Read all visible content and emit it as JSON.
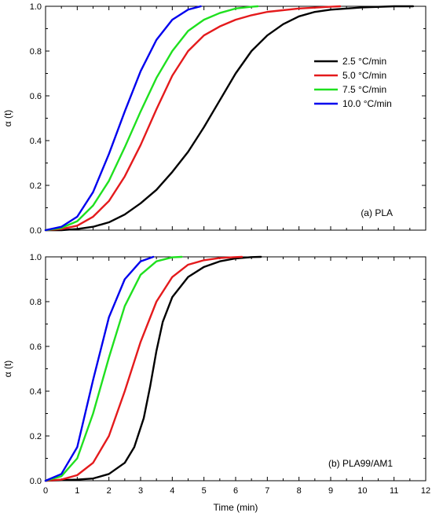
{
  "colors": {
    "2.5": "#000000",
    "5.0": "#e41a1c",
    "7.5": "#1fe01f",
    "10.0": "#0000ee"
  },
  "chart_data": [
    {
      "type": "line",
      "panel_label": "(a) PLA",
      "xlabel": "",
      "ylabel": "α (t)",
      "xlim": [
        0,
        12
      ],
      "ylim": [
        0,
        1.0
      ],
      "x_ticks": [],
      "y_ticks": [
        "0.0",
        "0.2",
        "0.4",
        "0.6",
        "0.8",
        "1.0"
      ],
      "legend": {
        "placement": "top-right",
        "shown": true
      },
      "series": [
        {
          "name": "2.5  °C/min",
          "color_key": "2.5",
          "x": [
            0,
            0.5,
            1,
            1.5,
            2,
            2.5,
            3,
            3.5,
            4,
            4.5,
            5,
            5.5,
            6,
            6.5,
            7,
            7.5,
            8,
            8.5,
            9,
            10,
            11,
            11.6
          ],
          "y": [
            0,
            0.0,
            0.005,
            0.015,
            0.035,
            0.07,
            0.12,
            0.18,
            0.26,
            0.35,
            0.46,
            0.58,
            0.7,
            0.8,
            0.87,
            0.92,
            0.955,
            0.975,
            0.985,
            0.995,
            1.0,
            1.0
          ]
        },
        {
          "name": "5.0  °C/min",
          "color_key": "5.0",
          "x": [
            0,
            0.5,
            1,
            1.5,
            2,
            2.5,
            3,
            3.5,
            4,
            4.5,
            5,
            5.5,
            6,
            6.5,
            7,
            8,
            9,
            9.3
          ],
          "y": [
            0,
            0.005,
            0.02,
            0.06,
            0.13,
            0.24,
            0.38,
            0.54,
            0.69,
            0.8,
            0.87,
            0.91,
            0.94,
            0.96,
            0.975,
            0.99,
            0.998,
            1.0
          ]
        },
        {
          "name": "7.5  °C/min",
          "color_key": "7.5",
          "x": [
            0,
            0.5,
            1,
            1.5,
            2,
            2.5,
            3,
            3.5,
            4,
            4.5,
            5,
            5.5,
            6,
            6.5,
            6.7
          ],
          "y": [
            0,
            0.01,
            0.04,
            0.11,
            0.22,
            0.37,
            0.53,
            0.68,
            0.8,
            0.89,
            0.94,
            0.97,
            0.99,
            0.998,
            1.0
          ]
        },
        {
          "name": "10.0  °C/min",
          "color_key": "10.0",
          "x": [
            0,
            0.5,
            1,
            1.5,
            2,
            2.5,
            3,
            3.5,
            4,
            4.5,
            4.9
          ],
          "y": [
            0,
            0.015,
            0.06,
            0.17,
            0.34,
            0.53,
            0.71,
            0.85,
            0.94,
            0.985,
            1.0
          ]
        }
      ]
    },
    {
      "type": "line",
      "panel_label": "(b) PLA99/AM1",
      "xlabel": "Time (min)",
      "ylabel": "α (t)",
      "xlim": [
        0,
        12
      ],
      "ylim": [
        0,
        1.0
      ],
      "x_ticks": [
        "0",
        "1",
        "2",
        "3",
        "4",
        "5",
        "6",
        "7",
        "8",
        "9",
        "10",
        "11",
        "12"
      ],
      "y_ticks": [
        "0.0",
        "0.2",
        "0.4",
        "0.6",
        "0.8",
        "1.0"
      ],
      "legend": {
        "shown": false
      },
      "series": [
        {
          "name": "2.5  °C/min",
          "color_key": "2.5",
          "x": [
            0,
            1,
            1.5,
            2,
            2.5,
            2.8,
            3.1,
            3.3,
            3.5,
            3.7,
            4,
            4.5,
            5,
            5.5,
            6,
            6.5,
            6.8
          ],
          "y": [
            0,
            0.005,
            0.01,
            0.03,
            0.08,
            0.15,
            0.28,
            0.42,
            0.58,
            0.71,
            0.82,
            0.91,
            0.955,
            0.98,
            0.993,
            0.999,
            1.0
          ]
        },
        {
          "name": "5.0  °C/min",
          "color_key": "5.0",
          "x": [
            0,
            0.5,
            1,
            1.5,
            2,
            2.5,
            3,
            3.5,
            4,
            4.5,
            5,
            5.5,
            6,
            6.2
          ],
          "y": [
            0,
            0.005,
            0.025,
            0.08,
            0.2,
            0.4,
            0.62,
            0.8,
            0.91,
            0.965,
            0.985,
            0.995,
            0.999,
            1.0
          ]
        },
        {
          "name": "7.5  °C/min",
          "color_key": "7.5",
          "x": [
            0,
            0.5,
            1,
            1.5,
            2,
            2.5,
            3,
            3.5,
            4,
            4.3
          ],
          "y": [
            0,
            0.02,
            0.1,
            0.3,
            0.55,
            0.78,
            0.92,
            0.98,
            0.998,
            1.0
          ]
        },
        {
          "name": "10.0  °C/min",
          "color_key": "10.0",
          "x": [
            0,
            0.5,
            1,
            1.5,
            2,
            2.5,
            3,
            3.4
          ],
          "y": [
            0,
            0.03,
            0.15,
            0.45,
            0.73,
            0.9,
            0.98,
            1.0
          ]
        }
      ]
    }
  ]
}
